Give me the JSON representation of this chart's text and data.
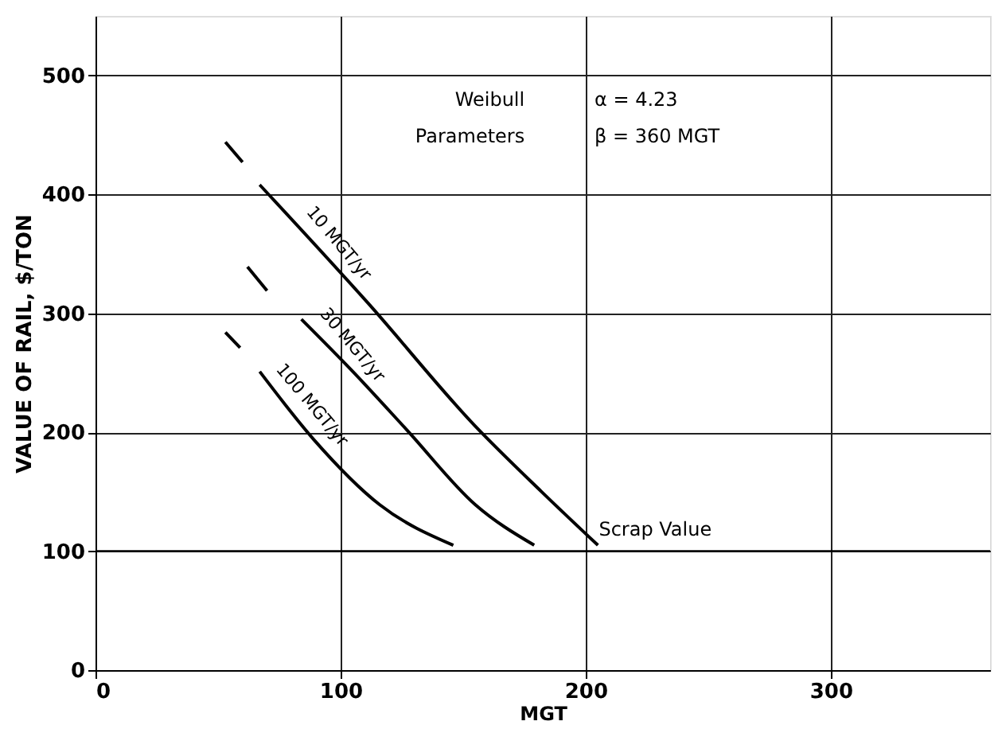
{
  "chart_data": {
    "type": "line",
    "xlabel": "MGT",
    "ylabel": "VALUE OF RAIL, $/TON",
    "xlim": [
      0,
      365
    ],
    "ylim": [
      0,
      550
    ],
    "xticks": [
      0,
      100,
      200,
      300
    ],
    "yticks": [
      0,
      100,
      200,
      300,
      400,
      500
    ],
    "grid": true,
    "marker": "none",
    "line_style": "solid",
    "series": [
      {
        "name": "10 MGT/yr",
        "color": "#000000",
        "x": [
          53,
          60,
          null,
          67,
          111,
          155,
          182,
          205
        ],
        "values": [
          444,
          427,
          null,
          408,
          309,
          205,
          150,
          105
        ]
      },
      {
        "name": "30 MGT/yr",
        "color": "#000000",
        "x": [
          62,
          70,
          null,
          84,
          105,
          127,
          155,
          179
        ],
        "values": [
          339,
          319,
          null,
          295,
          251,
          202,
          139,
          105
        ]
      },
      {
        "name": "100 MGT/yr",
        "color": "#000000",
        "x": [
          53,
          59,
          null,
          67,
          89,
          116,
          146
        ],
        "values": [
          284,
          271,
          null,
          251,
          194,
          139,
          105
        ]
      }
    ],
    "ref_lines": [
      {
        "axis": "y",
        "value": 100,
        "label": "Scrap Value",
        "color": "#000000",
        "line_style": "solid"
      }
    ],
    "annotations": [
      "Weibull",
      "Parameters",
      "α = 4.23",
      "β = 360 MGT"
    ]
  }
}
